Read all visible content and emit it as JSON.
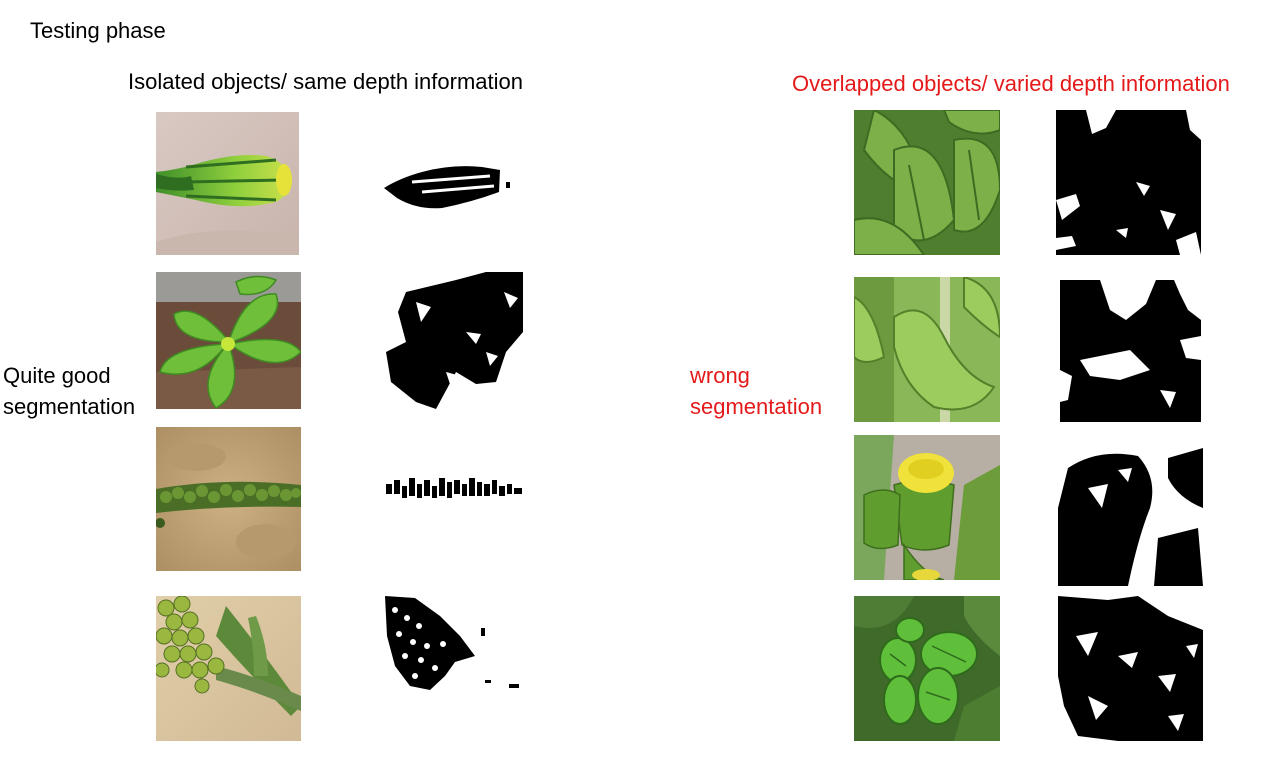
{
  "title": "Testing phase",
  "left": {
    "heading": "Isolated objects/ same depth information",
    "side_label_line1": "Quite good",
    "side_label_line2": "segmentation",
    "rows": [
      {
        "photo_icon": "flower-bud-photo",
        "mask_icon": "flower-bud-mask"
      },
      {
        "photo_icon": "leafy-seedling-photo",
        "mask_icon": "leafy-seedling-mask"
      },
      {
        "photo_icon": "seed-spike-photo",
        "mask_icon": "seed-spike-mask"
      },
      {
        "photo_icon": "bud-cluster-photo",
        "mask_icon": "bud-cluster-mask"
      }
    ]
  },
  "right": {
    "heading": "Overlapped objects/ varied depth information",
    "side_label_line1": "wrong",
    "side_label_line2": "segmentation",
    "rows": [
      {
        "photo_icon": "leaves-photo",
        "mask_icon": "leaves-mask"
      },
      {
        "photo_icon": "wavy-leaves-photo",
        "mask_icon": "wavy-leaves-mask"
      },
      {
        "photo_icon": "yellow-flower-photo",
        "mask_icon": "yellow-flower-mask"
      },
      {
        "photo_icon": "green-buds-photo",
        "mask_icon": "green-buds-mask"
      }
    ]
  },
  "colors": {
    "accent_red": "#e41a1a",
    "text": "#000000",
    "mask": "#000000"
  }
}
